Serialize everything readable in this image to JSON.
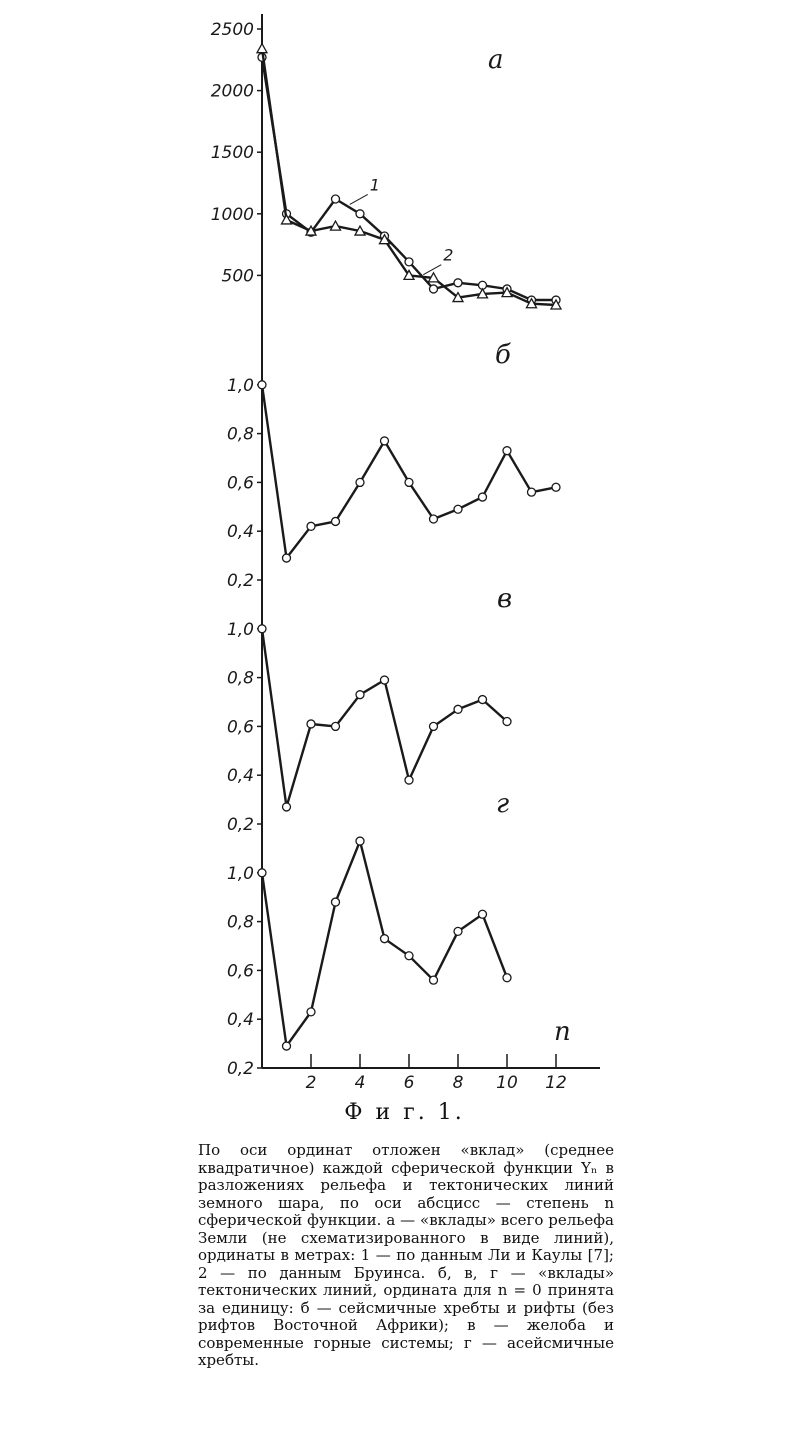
{
  "figure": {
    "title": "Ф и г. 1.",
    "caption": "По оси ординат отложен «вклад» (среднее квадратичное) каждой сферической функции Yₙ в разложениях рельефа и тектонических линий земного шара, по оси абсцисс — степень n сферической функции. а — «вклады» всего рельефа Земли (не схематизированного в виде линий), ординаты в метрах: 1 — по данным Ли и Каулы [7]; 2 — по данным Бруинса. б, в, г — «вклады» тектонических линий, ордината для n = 0 принята за единицу: б — сейсмичные хребты и рифты (без рифтов Восточной Африки); в — желоба и современные горные системы; г — асейсмичные хребты."
  },
  "colors": {
    "ink": "#1a1a1a",
    "paper": "#ffffff"
  },
  "chart_data": [
    {
      "type": "line",
      "panel_label": "а",
      "ylim": [
        0,
        2600
      ],
      "yticks": [
        "500",
        "1000",
        "1500",
        "2000",
        "2500"
      ],
      "ytick_values": [
        500,
        1000,
        1500,
        2000,
        2500
      ],
      "series": [
        {
          "name": "1",
          "marker": "circle",
          "x": [
            0,
            1,
            2,
            3,
            4,
            5,
            6,
            7,
            8,
            9,
            10,
            11,
            12
          ],
          "values": [
            2270,
            1000,
            850,
            1120,
            1000,
            820,
            610,
            390,
            440,
            420,
            390,
            300,
            300
          ]
        },
        {
          "name": "2",
          "marker": "triangle",
          "x": [
            0,
            1,
            2,
            3,
            4,
            5,
            6,
            7,
            8,
            9,
            10,
            11,
            12
          ],
          "values": [
            2340,
            950,
            860,
            900,
            860,
            790,
            500,
            480,
            320,
            350,
            360,
            270,
            260
          ]
        }
      ]
    },
    {
      "type": "line",
      "panel_label": "б",
      "ylim": [
        0.15,
        1.0
      ],
      "yticks": [
        "0,2",
        "0,4",
        "0,6",
        "0,8",
        "1,0"
      ],
      "ytick_values": [
        0.2,
        0.4,
        0.6,
        0.8,
        1.0
      ],
      "series": [
        {
          "marker": "circle",
          "x": [
            0,
            1,
            2,
            3,
            4,
            5,
            6,
            7,
            8,
            9,
            10,
            11,
            12
          ],
          "values": [
            1.0,
            0.29,
            0.42,
            0.44,
            0.6,
            0.77,
            0.6,
            0.45,
            0.49,
            0.54,
            0.73,
            0.56,
            0.58
          ]
        }
      ]
    },
    {
      "type": "line",
      "panel_label": "в",
      "ylim": [
        0.15,
        1.0
      ],
      "yticks": [
        "0,2",
        "0,4",
        "0,6",
        "0,8",
        "1,0"
      ],
      "ytick_values": [
        0.2,
        0.4,
        0.6,
        0.8,
        1.0
      ],
      "series": [
        {
          "marker": "circle",
          "x": [
            0,
            1,
            2,
            3,
            4,
            5,
            6,
            7,
            8,
            9,
            10
          ],
          "values": [
            1.0,
            0.27,
            0.61,
            0.6,
            0.73,
            0.79,
            0.38,
            0.6,
            0.67,
            0.71,
            0.62
          ]
        }
      ]
    },
    {
      "type": "line",
      "panel_label": "г",
      "ylim": [
        0.0,
        1.2
      ],
      "yticks": [
        "0,2",
        "0,4",
        "0,6",
        "0,8",
        "1,0"
      ],
      "ytick_values": [
        0.2,
        0.4,
        0.6,
        0.8,
        1.0
      ],
      "xticks": [
        "2",
        "4",
        "6",
        "8",
        "10",
        "12"
      ],
      "xtick_values": [
        2,
        4,
        6,
        8,
        10,
        12
      ],
      "xlabel": "n",
      "series": [
        {
          "marker": "circle",
          "x": [
            0,
            1,
            2,
            3,
            4,
            5,
            6,
            7,
            8,
            9,
            10
          ],
          "values": [
            1.0,
            0.29,
            0.43,
            0.88,
            1.13,
            0.73,
            0.66,
            0.56,
            0.76,
            0.83,
            0.57
          ]
        }
      ]
    }
  ]
}
